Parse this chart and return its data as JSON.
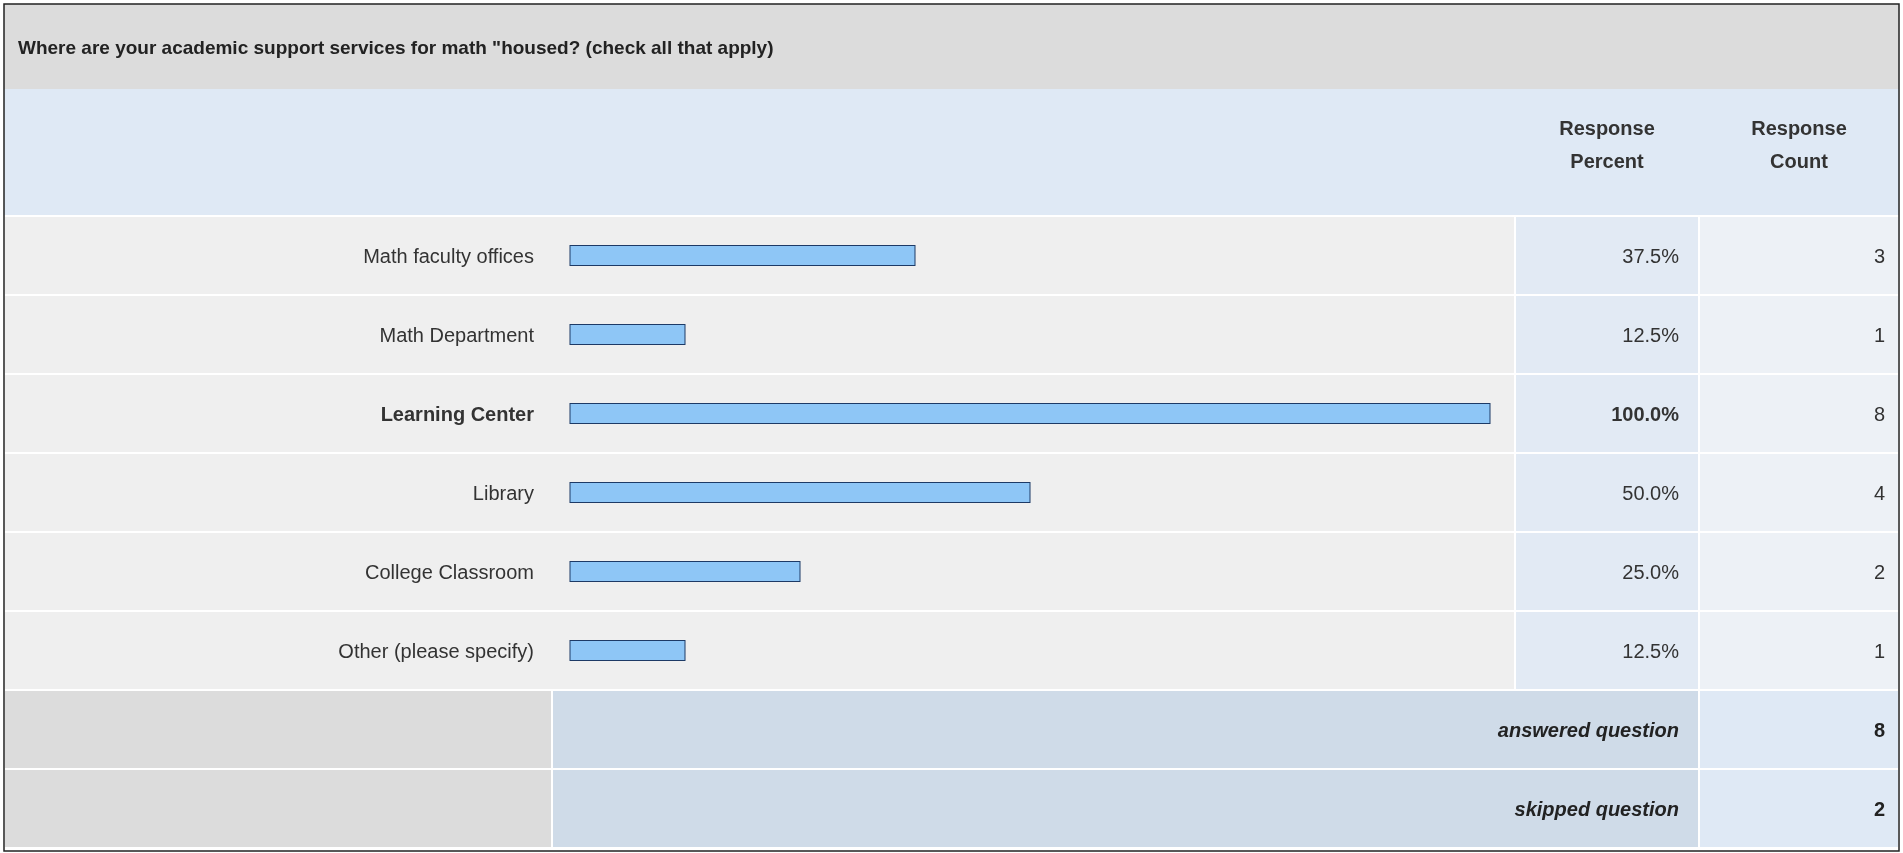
{
  "chart_data": {
    "type": "bar",
    "orientation": "horizontal",
    "title": "Where are your academic support services for math \"housed? (check all that apply)",
    "categories": [
      "Math faculty offices",
      "Math Department",
      "Learning Center",
      "Library",
      "College Classroom",
      "Other (please specify)"
    ],
    "values": [
      37.5,
      12.5,
      100,
      50,
      25,
      12.5
    ],
    "value_labels": [
      "37.5%",
      "12.5%",
      "100.0%",
      "50.0%",
      "25.0%",
      "12.5%"
    ],
    "color": "#8ec6f6",
    "xlim": [
      0,
      100
    ],
    "tick_labels": "y",
    "annotations": [
      "Response Percent",
      "Response Count",
      "3",
      "1",
      "8",
      "4",
      "2",
      "1",
      "answered question",
      "8",
      "skipped question",
      "2"
    ]
  }
}
